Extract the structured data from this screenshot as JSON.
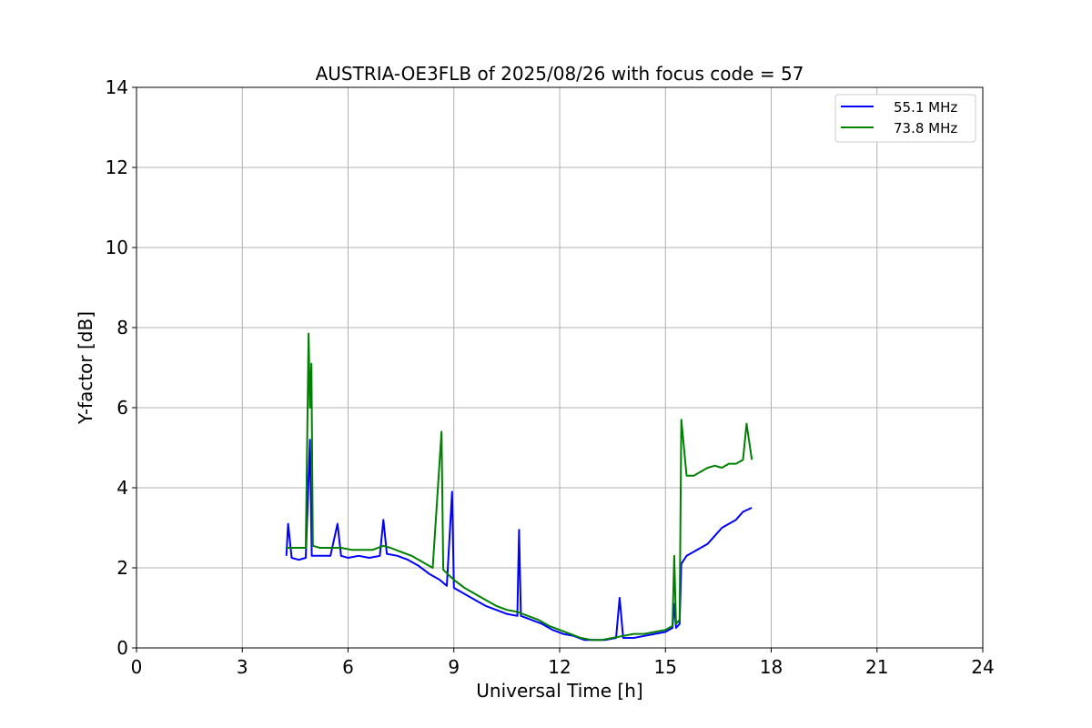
{
  "chart_data": {
    "type": "line",
    "title": "AUSTRIA-OE3FLB of 2025/08/26 with focus code = 57",
    "xlabel": "Universal Time [h]",
    "ylabel": "Y-factor [dB]",
    "xlim": [
      0,
      24
    ],
    "ylim": [
      0,
      14
    ],
    "xticks": [
      0,
      3,
      6,
      9,
      12,
      15,
      18,
      21,
      24
    ],
    "yticks": [
      0,
      2,
      4,
      6,
      8,
      10,
      12,
      14
    ],
    "grid": true,
    "legend_position": "top-right",
    "series": [
      {
        "name": "55.1 MHz",
        "color": "#0000ff",
        "points": [
          [
            4.25,
            2.3
          ],
          [
            4.3,
            3.1
          ],
          [
            4.4,
            2.25
          ],
          [
            4.6,
            2.2
          ],
          [
            4.8,
            2.25
          ],
          [
            4.92,
            5.2
          ],
          [
            4.97,
            2.3
          ],
          [
            5.2,
            2.3
          ],
          [
            5.5,
            2.3
          ],
          [
            5.7,
            3.1
          ],
          [
            5.8,
            2.3
          ],
          [
            6.0,
            2.25
          ],
          [
            6.3,
            2.3
          ],
          [
            6.6,
            2.25
          ],
          [
            6.9,
            2.3
          ],
          [
            7.0,
            3.2
          ],
          [
            7.1,
            2.35
          ],
          [
            7.4,
            2.3
          ],
          [
            7.7,
            2.2
          ],
          [
            8.0,
            2.05
          ],
          [
            8.3,
            1.85
          ],
          [
            8.6,
            1.7
          ],
          [
            8.8,
            1.55
          ],
          [
            8.95,
            3.9
          ],
          [
            9.0,
            1.5
          ],
          [
            9.3,
            1.35
          ],
          [
            9.6,
            1.2
          ],
          [
            9.9,
            1.05
          ],
          [
            10.2,
            0.95
          ],
          [
            10.5,
            0.85
          ],
          [
            10.8,
            0.8
          ],
          [
            10.85,
            2.95
          ],
          [
            10.9,
            0.8
          ],
          [
            11.2,
            0.7
          ],
          [
            11.5,
            0.6
          ],
          [
            11.8,
            0.45
          ],
          [
            12.1,
            0.35
          ],
          [
            12.4,
            0.3
          ],
          [
            12.7,
            0.2
          ],
          [
            13.0,
            0.2
          ],
          [
            13.3,
            0.2
          ],
          [
            13.6,
            0.25
          ],
          [
            13.7,
            1.25
          ],
          [
            13.8,
            0.25
          ],
          [
            14.1,
            0.25
          ],
          [
            14.4,
            0.3
          ],
          [
            14.7,
            0.35
          ],
          [
            15.0,
            0.4
          ],
          [
            15.2,
            0.5
          ],
          [
            15.25,
            1.1
          ],
          [
            15.3,
            0.5
          ],
          [
            15.4,
            0.6
          ],
          [
            15.45,
            2.1
          ],
          [
            15.6,
            2.3
          ],
          [
            15.8,
            2.4
          ],
          [
            16.0,
            2.5
          ],
          [
            16.2,
            2.6
          ],
          [
            16.4,
            2.8
          ],
          [
            16.6,
            3.0
          ],
          [
            16.8,
            3.1
          ],
          [
            17.0,
            3.2
          ],
          [
            17.2,
            3.4
          ],
          [
            17.45,
            3.5
          ]
        ]
      },
      {
        "name": "73.8 MHz",
        "color": "#008000",
        "points": [
          [
            4.25,
            2.5
          ],
          [
            4.4,
            2.5
          ],
          [
            4.6,
            2.5
          ],
          [
            4.8,
            2.5
          ],
          [
            4.88,
            7.85
          ],
          [
            4.92,
            6.0
          ],
          [
            4.96,
            7.1
          ],
          [
            5.0,
            2.55
          ],
          [
            5.2,
            2.5
          ],
          [
            5.5,
            2.5
          ],
          [
            5.8,
            2.5
          ],
          [
            6.1,
            2.45
          ],
          [
            6.4,
            2.45
          ],
          [
            6.7,
            2.45
          ],
          [
            7.0,
            2.55
          ],
          [
            7.2,
            2.5
          ],
          [
            7.5,
            2.4
          ],
          [
            7.8,
            2.3
          ],
          [
            8.1,
            2.15
          ],
          [
            8.4,
            2.0
          ],
          [
            8.65,
            5.4
          ],
          [
            8.7,
            1.95
          ],
          [
            9.0,
            1.7
          ],
          [
            9.3,
            1.5
          ],
          [
            9.6,
            1.35
          ],
          [
            9.9,
            1.2
          ],
          [
            10.2,
            1.05
          ],
          [
            10.5,
            0.95
          ],
          [
            10.8,
            0.9
          ],
          [
            11.1,
            0.8
          ],
          [
            11.4,
            0.7
          ],
          [
            11.7,
            0.55
          ],
          [
            12.0,
            0.45
          ],
          [
            12.3,
            0.35
          ],
          [
            12.6,
            0.25
          ],
          [
            12.9,
            0.2
          ],
          [
            13.2,
            0.2
          ],
          [
            13.5,
            0.25
          ],
          [
            13.8,
            0.3
          ],
          [
            14.1,
            0.35
          ],
          [
            14.4,
            0.35
          ],
          [
            14.7,
            0.4
          ],
          [
            15.0,
            0.45
          ],
          [
            15.2,
            0.55
          ],
          [
            15.25,
            2.3
          ],
          [
            15.3,
            0.6
          ],
          [
            15.4,
            0.7
          ],
          [
            15.45,
            5.7
          ],
          [
            15.6,
            4.3
          ],
          [
            15.8,
            4.3
          ],
          [
            16.0,
            4.4
          ],
          [
            16.2,
            4.5
          ],
          [
            16.4,
            4.55
          ],
          [
            16.6,
            4.5
          ],
          [
            16.8,
            4.6
          ],
          [
            17.0,
            4.6
          ],
          [
            17.2,
            4.7
          ],
          [
            17.3,
            5.6
          ],
          [
            17.45,
            4.7
          ]
        ]
      }
    ]
  }
}
